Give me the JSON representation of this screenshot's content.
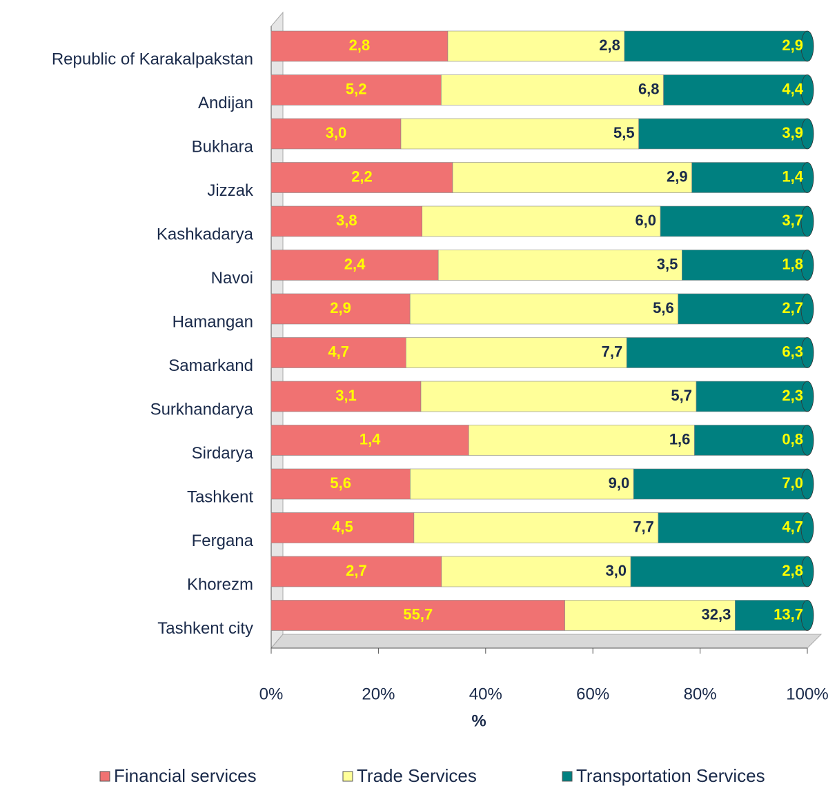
{
  "chart_data": {
    "type": "bar",
    "orientation": "horizontal",
    "stacked": "percent",
    "x_label": "%",
    "categories": [
      "Republic of Karakalpakstan",
      "Andijan",
      "Bukhara",
      "Jizzak",
      "Kashkadarya",
      "Navoi",
      "Hamangan",
      "Samarkand",
      "Surkhandarya",
      "Sirdarya",
      "Tashkent",
      "Fergana",
      "Khorezm",
      "Tashkent city"
    ],
    "series": [
      {
        "name": "Financial services",
        "color": "#f07272",
        "label_color": "#ffff00",
        "values": [
          2.8,
          5.2,
          3.0,
          2.2,
          3.8,
          2.4,
          2.9,
          4.7,
          3.1,
          1.4,
          5.6,
          4.5,
          2.7,
          55.7
        ],
        "value_labels": [
          "2,8",
          "5,2",
          "3,0",
          "2,2",
          "3,8",
          "2,4",
          "2,9",
          "4,7",
          "3,1",
          "1,4",
          "5,6",
          "4,5",
          "2,7",
          "55,7"
        ]
      },
      {
        "name": "Trade Services",
        "color": "#ffff99",
        "label_color": "#1a2a4a",
        "values": [
          2.8,
          6.8,
          5.5,
          2.9,
          6.0,
          3.5,
          5.6,
          7.7,
          5.7,
          1.6,
          9.0,
          7.7,
          3.0,
          32.3
        ],
        "value_labels": [
          "2,8",
          "6,8",
          "5,5",
          "2,9",
          "6,0",
          "3,5",
          "5,6",
          "7,7",
          "5,7",
          "1,6",
          "9,0",
          "7,7",
          "3,0",
          "32,3"
        ]
      },
      {
        "name": "Transportation Services",
        "color": "#008080",
        "label_color": "#ffff00",
        "values": [
          2.9,
          4.4,
          3.9,
          1.4,
          3.7,
          1.8,
          2.7,
          6.3,
          2.3,
          0.8,
          7.0,
          4.7,
          2.8,
          13.7
        ],
        "value_labels": [
          "2,9",
          "4,4",
          "3,9",
          "1,4",
          "3,7",
          "1,8",
          "2,7",
          "6,3",
          "2,3",
          "0,8",
          "7,0",
          "4,7",
          "2,8",
          "13,7"
        ]
      }
    ],
    "xlim": [
      0,
      100
    ],
    "xticks": [
      {
        "value": 0,
        "label": "0%"
      },
      {
        "value": 20,
        "label": "20%"
      },
      {
        "value": 40,
        "label": "40%"
      },
      {
        "value": 60,
        "label": "60%"
      },
      {
        "value": 80,
        "label": "80%"
      },
      {
        "value": 100,
        "label": "100%"
      }
    ],
    "legend": "bottom"
  }
}
